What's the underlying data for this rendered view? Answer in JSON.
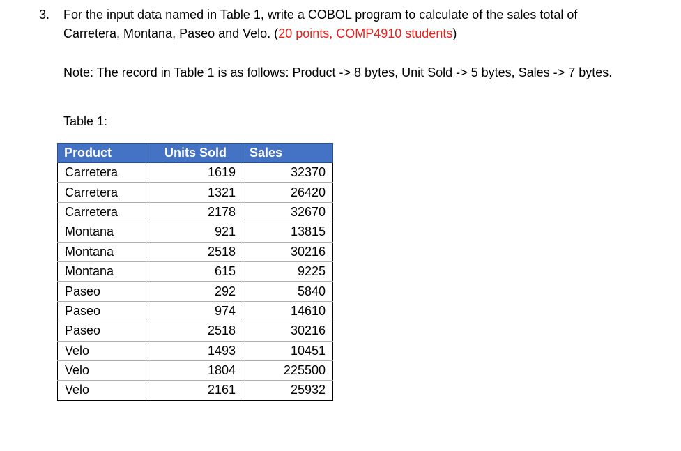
{
  "question": {
    "number": "3.",
    "text": "For the input data named in Table 1, write a COBOL program to calculate of the sales total of Carretera, Montana, Paseo and Velo. (",
    "points": "20 points, COMP4910 students",
    "close": ")",
    "accent_color": "#e8221c"
  },
  "note": "Note: The record in Table 1 is as follows: Product -> 8 bytes, Unit Sold -> 5 bytes, Sales -> 7 bytes.",
  "table_caption": "Table 1:",
  "table": {
    "header_color": "#4472c4",
    "columns": [
      "Product",
      "Units Sold",
      "Sales"
    ],
    "rows": [
      [
        "Carretera",
        "1619",
        "32370"
      ],
      [
        "Carretera",
        "1321",
        "26420"
      ],
      [
        "Carretera",
        "2178",
        "32670"
      ],
      [
        "Montana",
        "921",
        "13815"
      ],
      [
        "Montana",
        "2518",
        "30216"
      ],
      [
        "Montana",
        "615",
        "9225"
      ],
      [
        "Paseo",
        "292",
        "5840"
      ],
      [
        "Paseo",
        "974",
        "14610"
      ],
      [
        "Paseo",
        "2518",
        "30216"
      ],
      [
        "Velo",
        "1493",
        "10451"
      ],
      [
        "Velo",
        "1804",
        "225500"
      ],
      [
        "Velo",
        "2161",
        "25932"
      ]
    ]
  }
}
